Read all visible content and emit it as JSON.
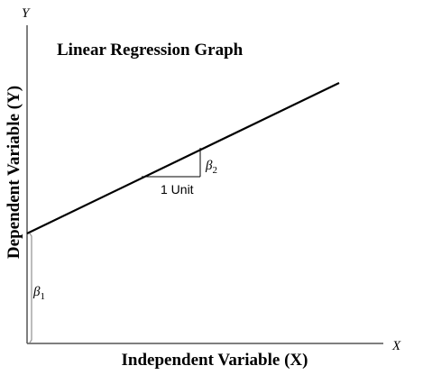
{
  "title": "Linear Regression Graph",
  "axes": {
    "y_letter": "Y",
    "x_letter": "X",
    "y_label": "Dependent Variable (Y)",
    "x_label": "Independent Variable (X)"
  },
  "annotations": {
    "intercept_symbol": "β",
    "intercept_subscript": "1",
    "slope_symbol": "β",
    "slope_subscript": "2",
    "run_label": "1 Unit"
  },
  "colors": {
    "ink": "#000000",
    "axis": "#555555",
    "intercept_mark": "#999999"
  }
}
